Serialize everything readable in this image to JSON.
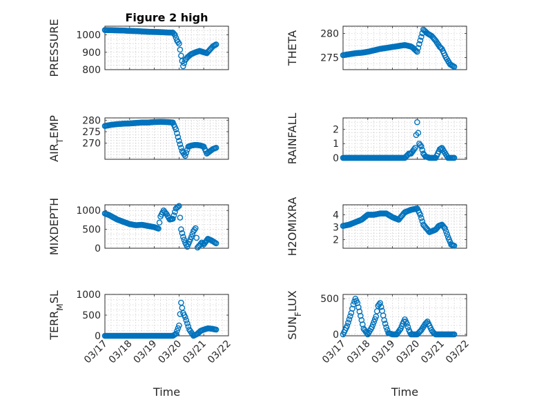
{
  "chart_data": [
    {
      "type": "scatter",
      "id": "pressure",
      "title": "Figure 2 high",
      "ylabel_parts": [
        "PRESSURE"
      ],
      "ylim": [
        800,
        1050
      ],
      "yticks": [
        800,
        900,
        1000
      ],
      "ytick_labels": [
        "800",
        "900",
        "1000"
      ],
      "grid": true,
      "xtick_labels_visible": false,
      "series": [
        {
          "x": [
            "03/17 00:00",
            "03/17 06:00",
            "03/17 12:00",
            "03/17 18:00",
            "03/18 00:00",
            "03/18 06:00",
            "03/18 12:00",
            "03/18 18:00",
            "03/19 00:00",
            "03/19 06:00",
            "03/19 12:00",
            "03/19 18:00",
            "03/19 20:00",
            "03/19 22:00",
            "03/20 00:00",
            "03/20 02:00",
            "03/20 04:00",
            "03/20 06:00",
            "03/20 08:00",
            "03/20 10:00",
            "03/20 12:00",
            "03/20 16:00",
            "03/20 20:00",
            "03/21 00:00",
            "03/21 03:00",
            "03/21 06:00",
            "03/21 09:00",
            "03/21 12:00"
          ],
          "y": [
            1028,
            1027,
            1026,
            1025,
            1023,
            1022,
            1020,
            1018,
            1017,
            1016,
            1014,
            1013,
            1000,
            968,
            950,
            880,
            820,
            855,
            870,
            880,
            890,
            900,
            908,
            900,
            895,
            915,
            935,
            945
          ]
        }
      ]
    },
    {
      "type": "scatter",
      "id": "theta",
      "ylabel_parts": [
        "THETA"
      ],
      "ylim": [
        272.5,
        281.5
      ],
      "yticks": [
        275,
        280
      ],
      "ytick_labels": [
        "275",
        "280"
      ],
      "grid": true,
      "xtick_labels_visible": false,
      "series": [
        {
          "x": [
            "03/17 00:00",
            "03/17 06:00",
            "03/17 12:00",
            "03/17 18:00",
            "03/18 00:00",
            "03/18 06:00",
            "03/18 12:00",
            "03/18 18:00",
            "03/19 00:00",
            "03/19 06:00",
            "03/19 12:00",
            "03/19 18:00",
            "03/19 20:00",
            "03/20 00:00",
            "03/20 02:00",
            "03/20 06:00",
            "03/20 10:00",
            "03/20 14:00",
            "03/20 18:00",
            "03/20 22:00",
            "03/21 00:00",
            "03/21 04:00",
            "03/21 08:00",
            "03/21 12:00"
          ],
          "y": [
            275.5,
            275.7,
            275.9,
            276.0,
            276.2,
            276.5,
            276.8,
            277.0,
            277.2,
            277.4,
            277.6,
            277.3,
            277.0,
            276.2,
            277.8,
            280.8,
            280.0,
            279.5,
            278.5,
            277.2,
            276.8,
            275.0,
            273.6,
            273.1
          ]
        }
      ]
    },
    {
      "type": "scatter",
      "id": "air-temp",
      "ylabel_parts": [
        "AIR",
        "T",
        "EMP"
      ],
      "ylim": [
        263,
        281
      ],
      "yticks": [
        270,
        275,
        280
      ],
      "ytick_labels": [
        "270",
        "275",
        "280"
      ],
      "grid": true,
      "xtick_labels_visible": false,
      "series": [
        {
          "x": [
            "03/17 00:00",
            "03/17 06:00",
            "03/17 12:00",
            "03/17 18:00",
            "03/18 00:00",
            "03/18 06:00",
            "03/18 12:00",
            "03/18 18:00",
            "03/19 00:00",
            "03/19 06:00",
            "03/19 12:00",
            "03/19 18:00",
            "03/19 21:00",
            "03/20 00:00",
            "03/20 03:00",
            "03/20 06:00",
            "03/20 09:00",
            "03/20 12:00",
            "03/20 15:00",
            "03/20 18:00",
            "03/20 21:00",
            "03/21 00:00",
            "03/21 03:00",
            "03/21 06:00",
            "03/21 09:00",
            "03/21 12:00"
          ],
          "y": [
            277.5,
            278.0,
            278.3,
            278.5,
            278.6,
            278.8,
            279.0,
            279.0,
            279.2,
            279.3,
            279.2,
            279.0,
            276.0,
            271.0,
            266.5,
            264.5,
            268.5,
            269.0,
            269.2,
            269.2,
            269.0,
            268.5,
            265.5,
            266.5,
            267.5,
            268.0
          ]
        }
      ]
    },
    {
      "type": "scatter",
      "id": "rainfall",
      "ylabel_parts": [
        "RAINFALL"
      ],
      "ylim": [
        -0.1,
        2.8
      ],
      "yticks": [
        0,
        1,
        2
      ],
      "ytick_labels": [
        "0",
        "1",
        "2"
      ],
      "grid": true,
      "xtick_labels_visible": false,
      "series": [
        {
          "x": [
            "03/17 00:00",
            "03/17 12:00",
            "03/18 00:00",
            "03/18 12:00",
            "03/19 00:00",
            "03/19 08:00",
            "03/19 12:00",
            "03/19 16:00",
            "03/19 18:00",
            "03/19 20:00",
            "03/19 22:00",
            "03/20 00:00",
            "03/20 02:00",
            "03/20 04:00",
            "03/20 06:00",
            "03/20 08:00",
            "03/20 12:00",
            "03/20 18:00",
            "03/20 20:00",
            "03/20 22:00",
            "03/21 00:00",
            "03/21 06:00",
            "03/21 12:00"
          ],
          "y": [
            0,
            0,
            0,
            0,
            0,
            0,
            0,
            0.3,
            0.3,
            0.5,
            0.7,
            2.5,
            1.0,
            0.8,
            0.3,
            0.1,
            0,
            0,
            0.3,
            0.6,
            0.7,
            0,
            0
          ]
        }
      ]
    },
    {
      "type": "scatter",
      "id": "mixdepth",
      "ylabel_parts": [
        "MIXDEPTH"
      ],
      "ylim": [
        0,
        1150
      ],
      "yticks": [
        0,
        500,
        1000
      ],
      "ytick_labels": [
        "0",
        "500",
        "1000"
      ],
      "grid": true,
      "xtick_labels_visible": false,
      "series": [
        {
          "x": [
            "03/17 00:00",
            "03/17 04:00",
            "03/17 08:00",
            "03/17 12:00",
            "03/17 16:00",
            "03/17 20:00",
            "03/18 00:00",
            "03/18 06:00",
            "03/18 12:00",
            "03/18 18:00",
            "03/19 00:00",
            "03/19 04:00",
            "03/19 06:00",
            "03/19 09:00",
            "03/19 12:00",
            "03/19 15:00",
            "03/19 18:00",
            "03/19 21:00",
            "03/20 00:00",
            "03/20 02:00",
            "03/20 04:00",
            "03/20 06:00",
            "03/20 08:00",
            "03/20 12:00",
            "03/20 14:00",
            "03/20 16:00",
            "03/20 18:00",
            "03/20 20:00",
            "03/20 22:00",
            "03/21 00:00",
            "03/21 04:00",
            "03/21 08:00",
            "03/21 12:00"
          ],
          "y": [
            920,
            880,
            820,
            760,
            720,
            680,
            640,
            610,
            620,
            590,
            560,
            520,
            840,
            1000,
            900,
            760,
            780,
            1050,
            1120,
            500,
            300,
            150,
            40,
            300,
            450,
            530,
            20,
            80,
            150,
            100,
            250,
            200,
            130
          ]
        }
      ]
    },
    {
      "type": "scatter",
      "id": "h2omixra",
      "ylabel_parts": [
        "H2OMIXRA"
      ],
      "ylim": [
        1.3,
        4.8
      ],
      "yticks": [
        2,
        3,
        4
      ],
      "ytick_labels": [
        "2",
        "3",
        "4"
      ],
      "grid": true,
      "xtick_labels_visible": false,
      "series": [
        {
          "x": [
            "03/17 00:00",
            "03/17 06:00",
            "03/17 12:00",
            "03/17 18:00",
            "03/18 00:00",
            "03/18 06:00",
            "03/18 12:00",
            "03/18 18:00",
            "03/19 00:00",
            "03/19 06:00",
            "03/19 12:00",
            "03/19 18:00",
            "03/20 00:00",
            "03/20 03:00",
            "03/20 06:00",
            "03/20 12:00",
            "03/20 18:00",
            "03/20 21:00",
            "03/21 00:00",
            "03/21 03:00",
            "03/21 06:00",
            "03/21 09:00",
            "03/21 12:00"
          ],
          "y": [
            3.1,
            3.2,
            3.4,
            3.6,
            4.0,
            4.0,
            4.1,
            4.1,
            3.8,
            3.6,
            4.2,
            4.4,
            4.5,
            4.0,
            3.2,
            2.6,
            2.8,
            3.1,
            3.2,
            2.9,
            2.2,
            1.6,
            1.5
          ]
        }
      ]
    },
    {
      "type": "scatter",
      "id": "terr-msl",
      "ylabel_parts": [
        "TERR",
        "M",
        "SL"
      ],
      "ylim": [
        0,
        1000
      ],
      "yticks": [
        0,
        500,
        1000
      ],
      "ytick_labels": [
        "0",
        "500",
        "1000"
      ],
      "grid": true,
      "xlabel": "Time",
      "xticks": [
        "03/17",
        "03/18",
        "03/19",
        "03/20",
        "03/21",
        "03/22"
      ],
      "xtick_labels": [
        "03/17",
        "03/18",
        "03/19",
        "03/20",
        "03/21",
        "03/22"
      ],
      "series": [
        {
          "x": [
            "03/17 00:00",
            "03/17 12:00",
            "03/18 00:00",
            "03/18 12:00",
            "03/19 00:00",
            "03/19 12:00",
            "03/19 18:00",
            "03/19 21:00",
            "03/20 00:00",
            "03/20 02:00",
            "03/20 04:00",
            "03/20 06:00",
            "03/20 08:00",
            "03/20 10:00",
            "03/20 14:00",
            "03/20 18:00",
            "03/20 21:00",
            "03/21 00:00",
            "03/21 04:00",
            "03/21 08:00",
            "03/21 12:00"
          ],
          "y": [
            0,
            0,
            0,
            0,
            0,
            0,
            0,
            50,
            250,
            800,
            550,
            450,
            300,
            150,
            0,
            50,
            120,
            150,
            180,
            170,
            150
          ]
        }
      ]
    },
    {
      "type": "scatter",
      "id": "sun-flux",
      "ylabel_parts": [
        "SUN",
        "F",
        "LUX"
      ],
      "ylim": [
        -20,
        560
      ],
      "yticks": [
        0,
        500
      ],
      "ytick_labels": [
        "0",
        "500"
      ],
      "grid": true,
      "xlabel": "Time",
      "xticks": [
        "03/17",
        "03/18",
        "03/19",
        "03/20",
        "03/21",
        "03/22"
      ],
      "xtick_labels": [
        "03/17",
        "03/18",
        "03/19",
        "03/20",
        "03/21",
        "03/22"
      ],
      "series": [
        {
          "x": [
            "03/17 00:00",
            "03/17 04:00",
            "03/17 08:00",
            "03/17 10:00",
            "03/17 12:00",
            "03/17 14:00",
            "03/17 16:00",
            "03/17 18:00",
            "03/17 20:00",
            "03/18 00:00",
            "03/18 04:00",
            "03/18 08:00",
            "03/18 10:00",
            "03/18 12:00",
            "03/18 14:00",
            "03/18 16:00",
            "03/18 18:00",
            "03/18 20:00",
            "03/19 00:00",
            "03/19 04:00",
            "03/19 08:00",
            "03/19 10:00",
            "03/19 12:00",
            "03/19 14:00",
            "03/19 16:00",
            "03/19 18:00",
            "03/19 20:00",
            "03/20 00:00",
            "03/20 04:00",
            "03/20 08:00",
            "03/20 10:00",
            "03/20 12:00",
            "03/20 14:00",
            "03/20 16:00",
            "03/20 18:00",
            "03/20 20:00",
            "03/21 00:00",
            "03/21 06:00",
            "03/21 12:00"
          ],
          "y": [
            0,
            120,
            300,
            420,
            500,
            440,
            320,
            200,
            80,
            0,
            100,
            250,
            400,
            440,
            330,
            200,
            100,
            20,
            0,
            0,
            80,
            150,
            210,
            150,
            60,
            0,
            0,
            0,
            60,
            150,
            180,
            120,
            60,
            20,
            0,
            0,
            0,
            0,
            0
          ]
        }
      ]
    }
  ]
}
